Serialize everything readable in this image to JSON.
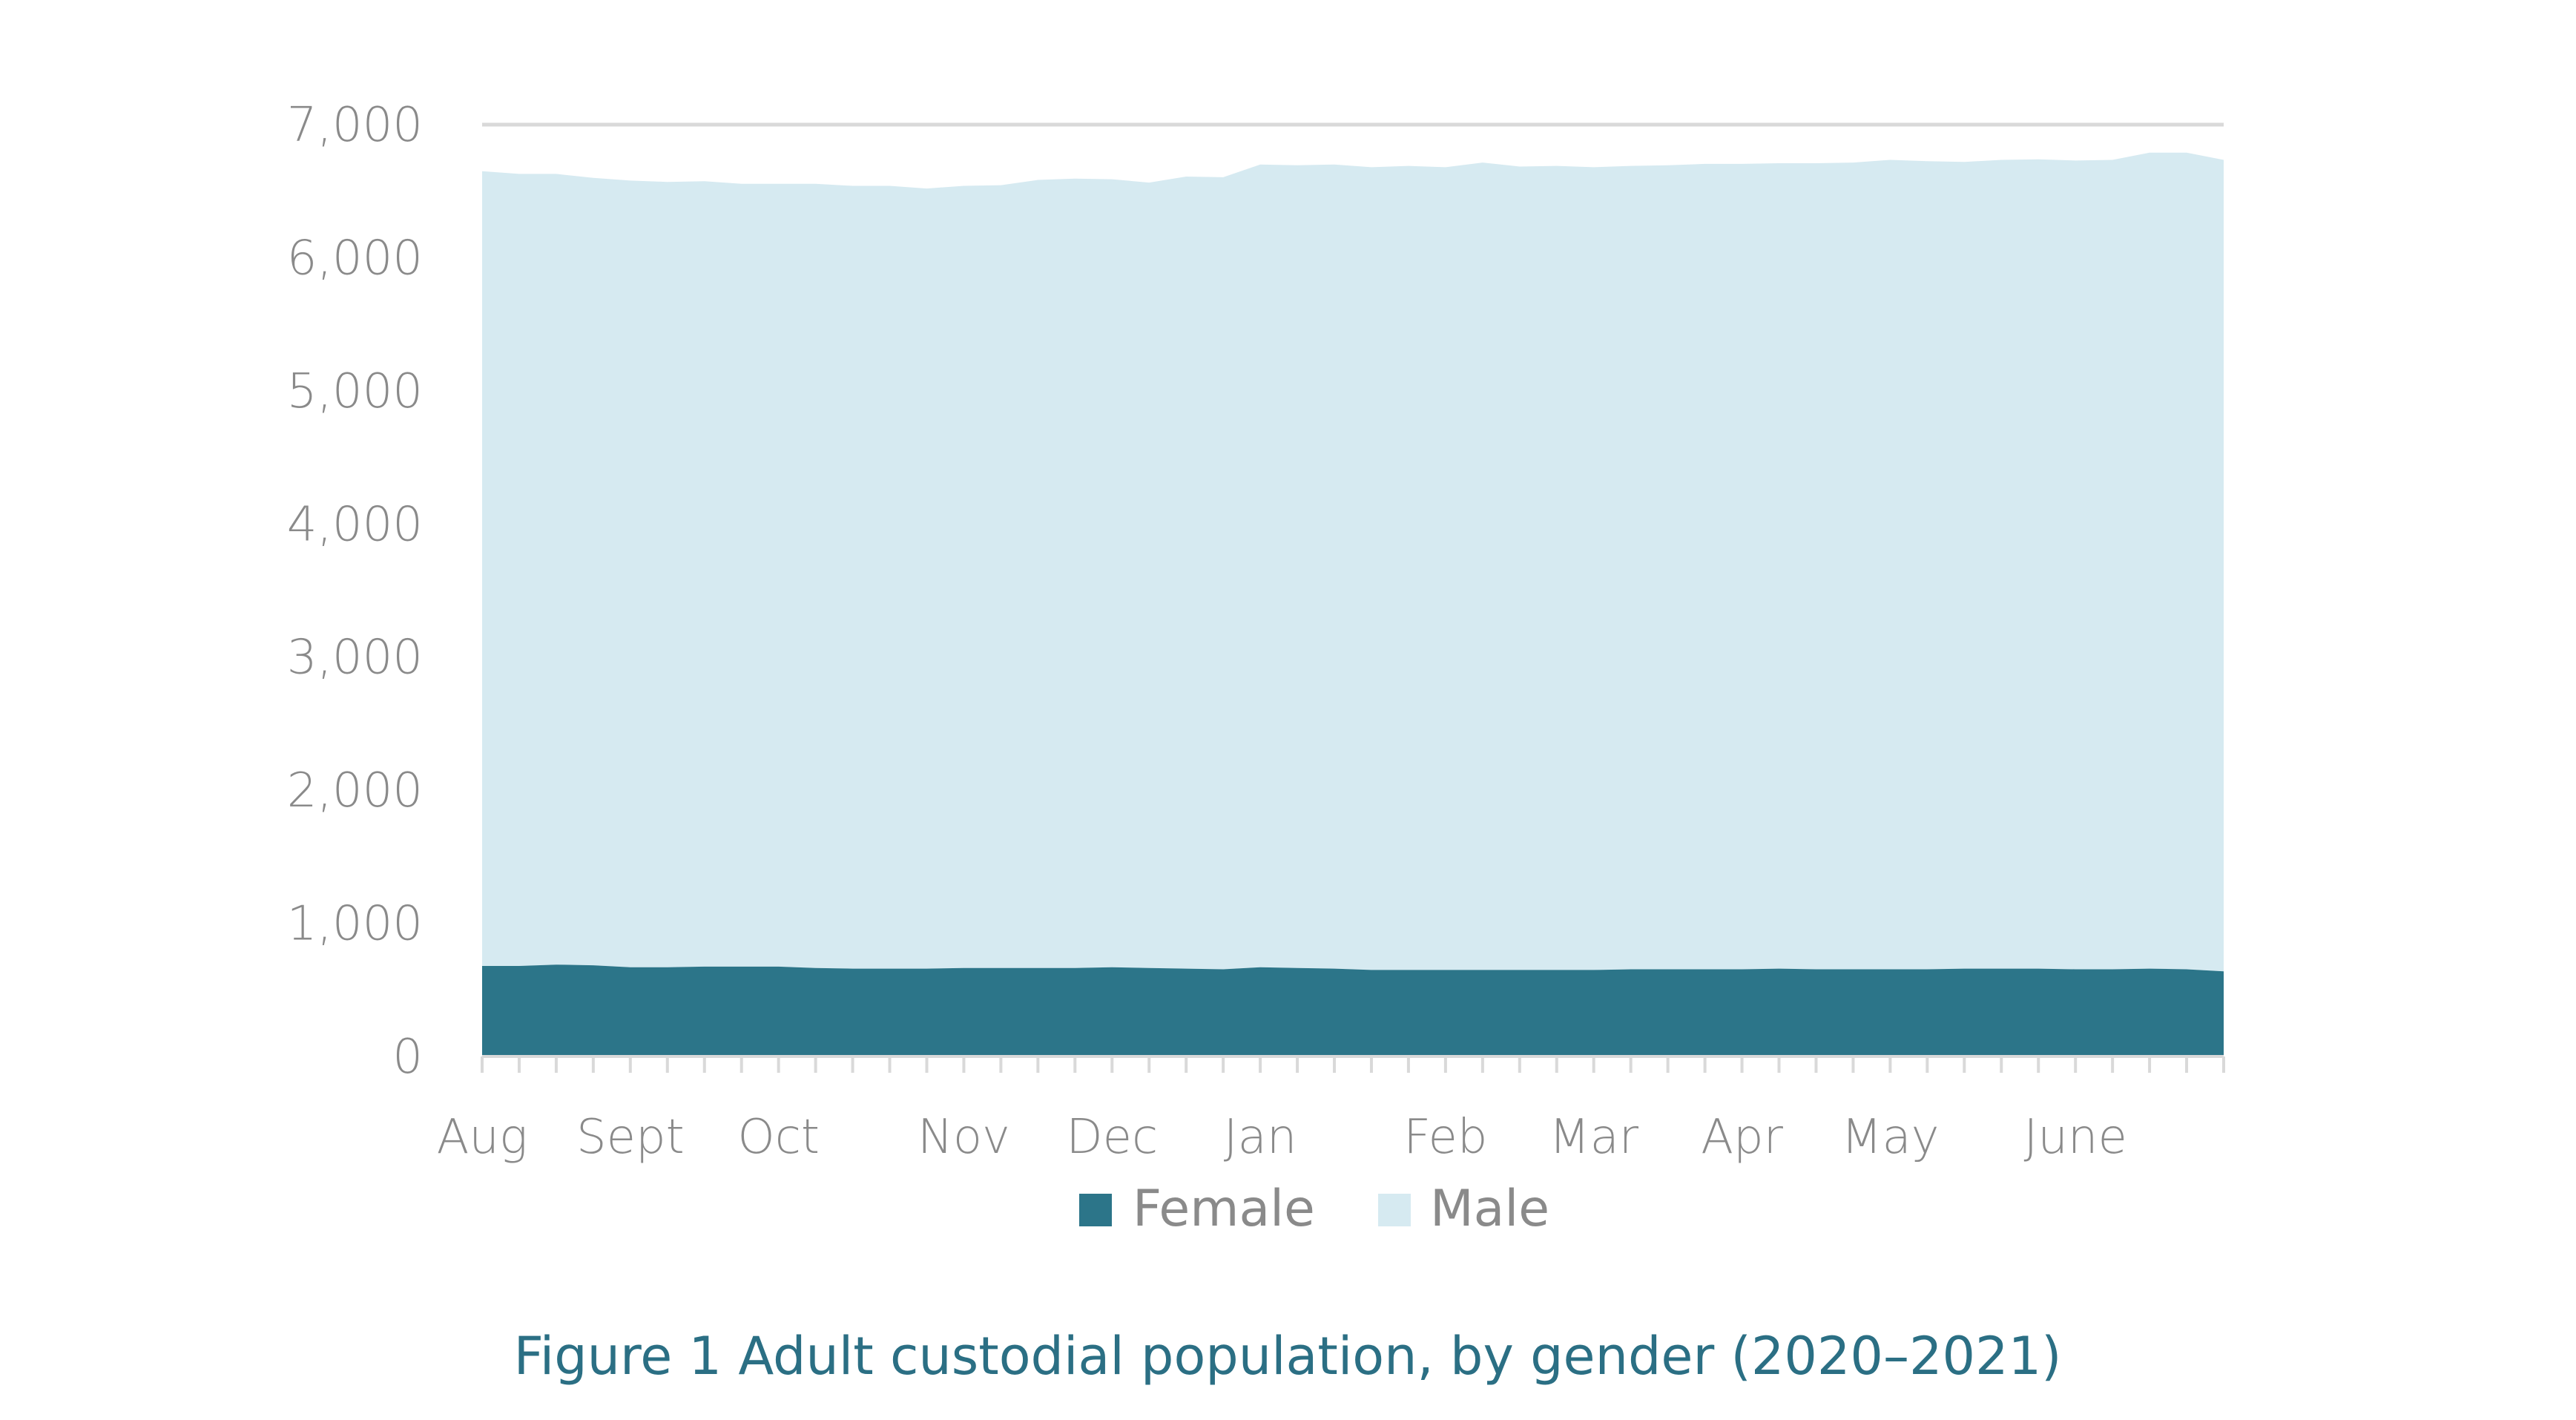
{
  "caption": "Figure 1 Adult custodial population, by gender (2020–2021)",
  "colors": {
    "female": "#2c7589",
    "male": "#d6eaf1",
    "gridline": "#d9d9d9",
    "axis_text": "#8a8a8a",
    "caption": "#2b6f84"
  },
  "legend": {
    "female_label": "Female",
    "male_label": "Male",
    "placement": "bottom-center"
  },
  "chart_data": {
    "type": "area",
    "stacked": true,
    "x_tick_labels": [
      "Aug",
      "Sept",
      "Oct",
      "Nov",
      "Dec",
      "Jan",
      "Feb",
      "Mar",
      "Apr",
      "May",
      "June"
    ],
    "x_tick_label_week_index": [
      0,
      4,
      8,
      13,
      17,
      21,
      26,
      30,
      34,
      38,
      43
    ],
    "y_ticks": [
      "0",
      "1,000",
      "2,000",
      "3,000",
      "4,000",
      "5,000",
      "6,000",
      "7,000"
    ],
    "ylim": [
      0,
      7000
    ],
    "gridlines": [
      7000
    ],
    "series": [
      {
        "name": "Female",
        "values": [
          680,
          680,
          690,
          685,
          670,
          670,
          675,
          675,
          675,
          665,
          660,
          660,
          660,
          665,
          665,
          665,
          665,
          670,
          665,
          660,
          655,
          670,
          665,
          660,
          650,
          650,
          650,
          650,
          650,
          650,
          650,
          655,
          655,
          655,
          655,
          660,
          655,
          655,
          655,
          655,
          660,
          660,
          660,
          655,
          655,
          660,
          655,
          640
        ]
      },
      {
        "name": "Male",
        "values": [
          5970,
          5950,
          5940,
          5915,
          5910,
          5900,
          5900,
          5880,
          5880,
          5890,
          5880,
          5880,
          5860,
          5875,
          5880,
          5920,
          5930,
          5920,
          5900,
          5950,
          5950,
          6030,
          6030,
          6040,
          6030,
          6040,
          6030,
          6065,
          6035,
          6040,
          6030,
          6035,
          6040,
          6050,
          6050,
          6050,
          6055,
          6060,
          6080,
          6070,
          6060,
          6075,
          6080,
          6075,
          6080,
          6130,
          6135,
          6095
        ]
      }
    ]
  }
}
